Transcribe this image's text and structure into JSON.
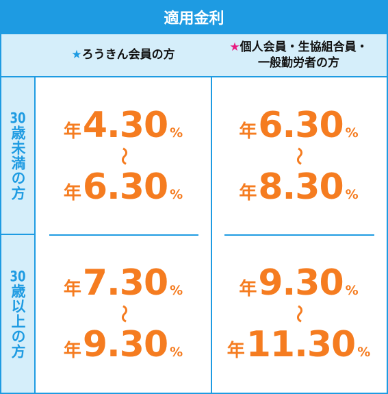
{
  "header": {
    "title": "適用金利"
  },
  "table": {
    "columns": [
      {
        "mark": "★",
        "lines": [
          "ろうきん会員の方"
        ]
      },
      {
        "mark": "★",
        "lines": [
          "個人会員・生協組合員・",
          "一般勤労者の方"
        ]
      }
    ],
    "rows": [
      {
        "label_number": "30",
        "label_text": "歳未満の方",
        "cells": [
          {
            "from": {
              "prefix": "年",
              "value": "4.30",
              "unit": "%"
            },
            "sep": "〜",
            "to": {
              "prefix": "年",
              "value": "6.30",
              "unit": "%"
            }
          },
          {
            "from": {
              "prefix": "年",
              "value": "6.30",
              "unit": "%"
            },
            "sep": "〜",
            "to": {
              "prefix": "年",
              "value": "8.30",
              "unit": "%"
            }
          }
        ]
      },
      {
        "label_number": "30",
        "label_text": "歳以上の方",
        "cells": [
          {
            "from": {
              "prefix": "年",
              "value": "7.30",
              "unit": "%"
            },
            "sep": "〜",
            "to": {
              "prefix": "年",
              "value": "9.30",
              "unit": "%"
            }
          },
          {
            "from": {
              "prefix": "年",
              "value": "9.30",
              "unit": "%"
            },
            "sep": "〜",
            "to": {
              "prefix": "年",
              "value": "11.30",
              "unit": "%"
            }
          }
        ]
      }
    ]
  }
}
